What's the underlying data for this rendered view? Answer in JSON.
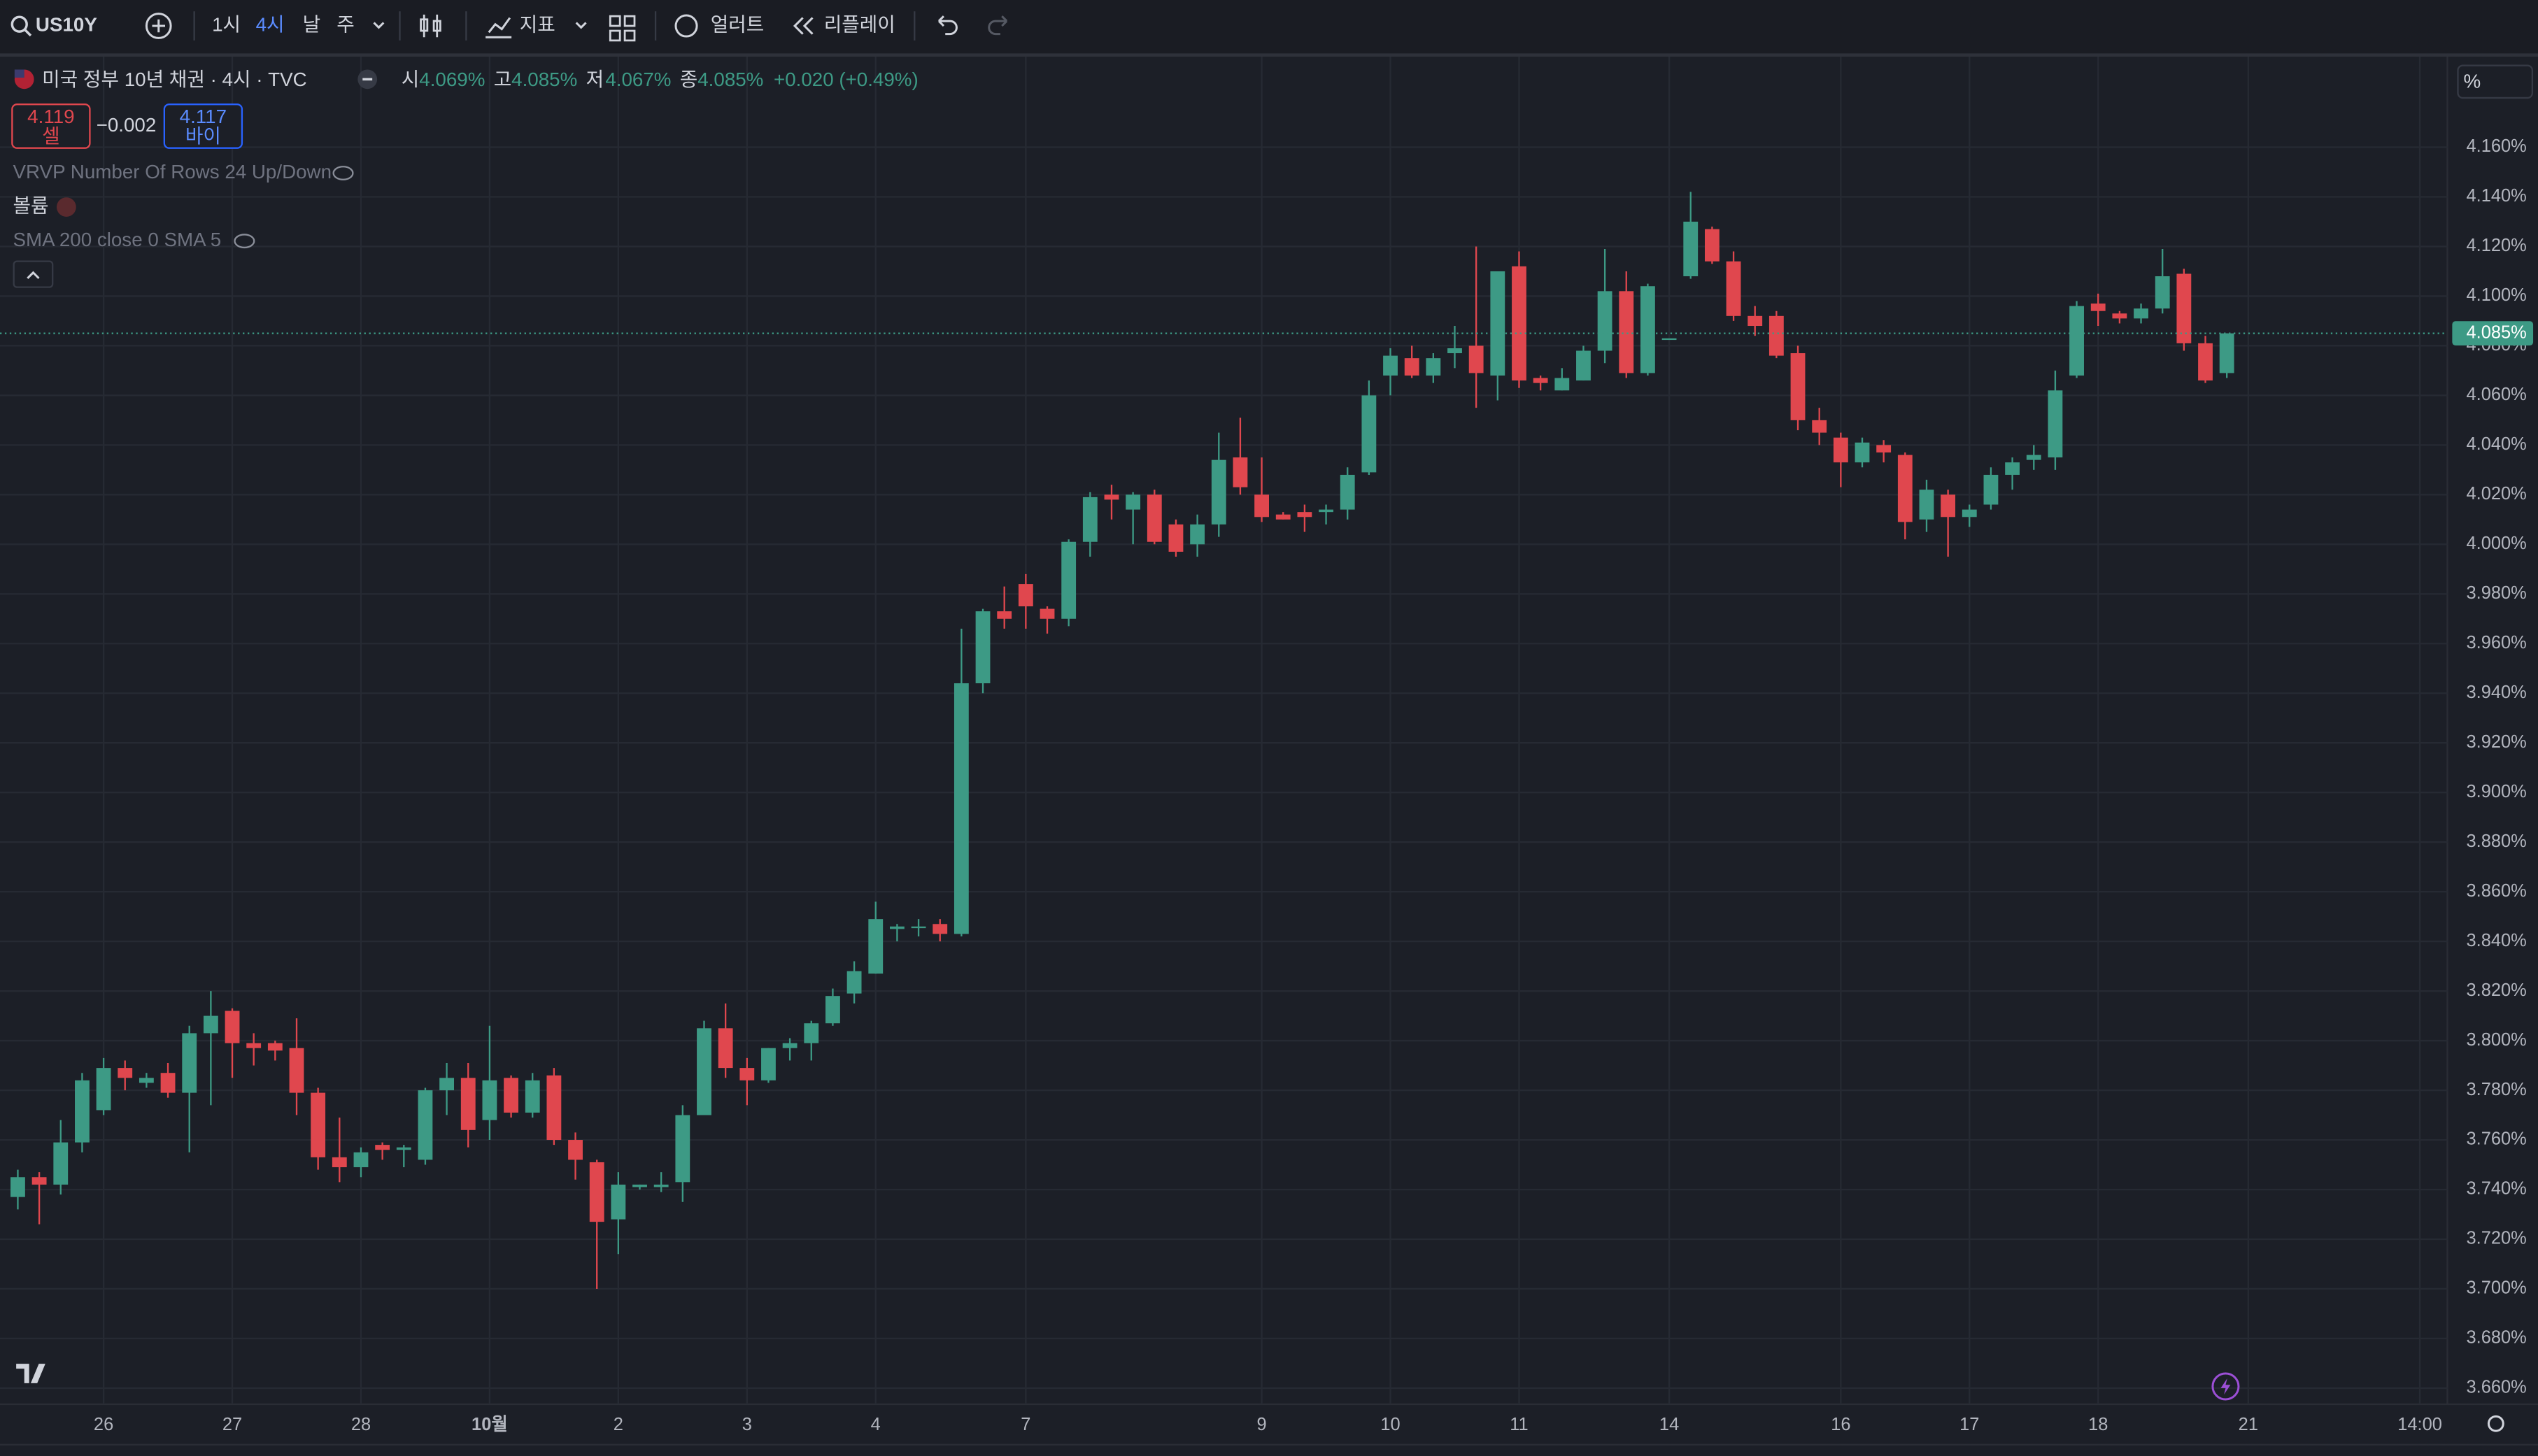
{
  "toolbar": {
    "symbol": "US10Y",
    "intervals": [
      "1시",
      "4시",
      "날",
      "주"
    ],
    "indicators": "지표",
    "alert": "얼러트",
    "replay": "리플레이"
  },
  "chart_data": {
    "type": "candlestick",
    "title": "미국 정부 10년 채권 · 4시 · TVC",
    "header": {
      "open_label": "시",
      "open": "4.069%",
      "high_label": "고",
      "high": "4.085%",
      "low_label": "저",
      "low": "4.067%",
      "close_label": "종",
      "close": "4.085%",
      "change": "+0.020 (+0.49%)"
    },
    "trade": {
      "sell_price": "4.119",
      "sell": "셀",
      "spread": "−0.002",
      "buy_price": "4.117",
      "buy": "바이"
    },
    "indicators": [
      "VRVP Number Of Rows 24 Up/Down",
      "볼륨",
      "SMA 200 close 0 SMA 5"
    ],
    "scale_unit": "%",
    "up_color": "#3d9a85",
    "down_color": "#e0474e",
    "grid": true,
    "categories": [
      null,
      null,
      null,
      null,
      "26",
      null,
      null,
      null,
      null,
      null,
      "27",
      null,
      null,
      null,
      null,
      null,
      "28",
      null,
      null,
      null,
      null,
      null,
      "10월",
      null,
      null,
      null,
      null,
      null,
      "2",
      null,
      null,
      null,
      null,
      null,
      "3",
      null,
      null,
      null,
      null,
      null,
      "4",
      null,
      null,
      null,
      null,
      null,
      null,
      "7",
      null,
      null,
      null,
      null,
      null,
      null,
      null,
      null,
      null,
      null,
      "9",
      null,
      null,
      null,
      null,
      null,
      "10",
      null,
      null,
      null,
      null,
      null,
      "11",
      null,
      null,
      null,
      null,
      null,
      null,
      "14",
      null,
      null,
      null,
      null,
      null,
      null,
      null,
      "16",
      null,
      null,
      null,
      null,
      null,
      "17",
      null,
      null,
      null,
      null,
      null,
      "18",
      null,
      null,
      null,
      null,
      null,
      null,
      "21",
      null,
      null,
      null,
      null,
      null,
      null,
      null,
      "14:00"
    ],
    "open": [
      3.737,
      3.745,
      3.742,
      3.759,
      3.772,
      3.789,
      3.783,
      3.787,
      3.779,
      3.803,
      3.812,
      3.799,
      3.799,
      3.797,
      3.779,
      3.753,
      3.749,
      3.758,
      3.756,
      3.752,
      3.78,
      3.785,
      3.768,
      3.785,
      3.771,
      3.786,
      3.76,
      3.751,
      3.728,
      3.741,
      3.741,
      3.743,
      3.77,
      3.805,
      3.789,
      3.784,
      3.797,
      3.799,
      3.807,
      3.819,
      3.827,
      3.845,
      3.846,
      3.847,
      3.843,
      3.944,
      3.973,
      3.984,
      3.974,
      3.97,
      4.001,
      4.02,
      4.014,
      4.02,
      4.008,
      4.0,
      4.008,
      4.035,
      4.02,
      4.012,
      4.013,
      4.013,
      4.014,
      4.029,
      4.068,
      4.075,
      4.068,
      4.077,
      4.08,
      4.068,
      4.112,
      4.067,
      4.062,
      4.066,
      4.078,
      4.102,
      4.069,
      4.083,
      4.108,
      4.127,
      4.114,
      4.092,
      4.092,
      4.077,
      4.05,
      4.043,
      4.033,
      4.04,
      4.036,
      4.01,
      4.02,
      4.011,
      4.016,
      4.028,
      4.034,
      4.035,
      4.068,
      4.097,
      4.093,
      4.091,
      4.095,
      4.109,
      4.081,
      4.069,
      null,
      null,
      null,
      null,
      null,
      null,
      null,
      null,
      null
    ],
    "high": [
      3.748,
      3.747,
      3.768,
      3.787,
      3.793,
      3.792,
      3.787,
      3.791,
      3.806,
      3.82,
      3.813,
      3.803,
      3.8,
      3.809,
      3.781,
      3.769,
      3.757,
      3.759,
      3.758,
      3.781,
      3.791,
      3.791,
      3.806,
      3.786,
      3.787,
      3.789,
      3.763,
      3.752,
      3.747,
      3.742,
      3.747,
      3.774,
      3.808,
      3.815,
      3.793,
      3.797,
      3.801,
      3.808,
      3.821,
      3.832,
      3.856,
      3.847,
      3.849,
      3.849,
      3.966,
      3.974,
      3.983,
      3.988,
      3.975,
      4.002,
      4.021,
      4.024,
      4.021,
      4.022,
      4.01,
      4.012,
      4.045,
      4.051,
      4.035,
      4.013,
      4.016,
      4.016,
      4.031,
      4.066,
      4.079,
      4.08,
      4.077,
      4.088,
      4.12,
      4.11,
      4.118,
      4.068,
      4.071,
      4.08,
      4.119,
      4.11,
      4.105,
      4.083,
      4.142,
      4.128,
      4.118,
      4.096,
      4.094,
      4.08,
      4.055,
      4.045,
      4.043,
      4.042,
      4.037,
      4.026,
      4.022,
      4.016,
      4.031,
      4.035,
      4.04,
      4.07,
      4.098,
      4.101,
      4.094,
      4.097,
      4.119,
      4.111,
      4.084,
      4.085,
      null,
      null,
      null,
      null,
      null,
      null,
      null,
      null,
      null
    ],
    "low": [
      3.732,
      3.726,
      3.738,
      3.755,
      3.77,
      3.78,
      3.781,
      3.777,
      3.755,
      3.774,
      3.785,
      3.79,
      3.792,
      3.77,
      3.748,
      3.743,
      3.745,
      3.752,
      3.749,
      3.75,
      3.77,
      3.757,
      3.76,
      3.769,
      3.769,
      3.758,
      3.744,
      3.7,
      3.714,
      3.74,
      3.739,
      3.735,
      3.77,
      3.785,
      3.774,
      3.783,
      3.792,
      3.792,
      3.806,
      3.815,
      3.827,
      3.84,
      3.842,
      3.84,
      3.842,
      3.94,
      3.966,
      3.966,
      3.964,
      3.967,
      3.995,
      4.01,
      4.0,
      4.0,
      3.995,
      3.995,
      4.003,
      4.02,
      4.009,
      4.01,
      4.005,
      4.008,
      4.01,
      4.028,
      4.06,
      4.067,
      4.065,
      4.071,
      4.055,
      4.058,
      4.063,
      4.062,
      4.062,
      4.066,
      4.073,
      4.067,
      4.068,
      4.083,
      4.107,
      4.113,
      4.09,
      4.084,
      4.075,
      4.046,
      4.04,
      4.023,
      4.031,
      4.033,
      4.002,
      4.005,
      3.995,
      4.007,
      4.014,
      4.022,
      4.03,
      4.03,
      4.067,
      4.088,
      4.089,
      4.089,
      4.093,
      4.078,
      4.065,
      4.067,
      null,
      null,
      null,
      null,
      null,
      null,
      null,
      null,
      null
    ],
    "close": [
      3.745,
      3.742,
      3.759,
      3.784,
      3.789,
      3.785,
      3.785,
      3.779,
      3.803,
      3.81,
      3.799,
      3.797,
      3.796,
      3.779,
      3.753,
      3.749,
      3.755,
      3.756,
      3.757,
      3.78,
      3.785,
      3.764,
      3.784,
      3.771,
      3.784,
      3.76,
      3.752,
      3.727,
      3.742,
      3.742,
      3.742,
      3.77,
      3.805,
      3.789,
      3.784,
      3.797,
      3.799,
      3.807,
      3.818,
      3.828,
      3.849,
      3.846,
      3.846,
      3.843,
      3.944,
      3.973,
      3.97,
      3.975,
      3.97,
      4.001,
      4.019,
      4.018,
      4.02,
      4.001,
      3.997,
      4.008,
      4.034,
      4.023,
      4.011,
      4.01,
      4.011,
      4.014,
      4.028,
      4.06,
      4.076,
      4.068,
      4.075,
      4.079,
      4.069,
      4.11,
      4.066,
      4.065,
      4.067,
      4.078,
      4.102,
      4.069,
      4.104,
      4.083,
      4.13,
      4.114,
      4.092,
      4.088,
      4.076,
      4.05,
      4.045,
      4.033,
      4.041,
      4.037,
      4.009,
      4.022,
      4.011,
      4.014,
      4.028,
      4.033,
      4.036,
      4.062,
      4.096,
      4.094,
      4.091,
      4.095,
      4.108,
      4.081,
      4.066,
      4.085,
      null,
      null,
      null,
      null,
      null,
      null,
      null,
      null,
      null
    ],
    "last_price": {
      "value": 4.085,
      "label": "4.085%"
    },
    "ylim": [
      3.6535,
      4.1965
    ],
    "yticks": [
      {
        "value": 3.66,
        "label": "3.660%"
      },
      {
        "value": 3.68,
        "label": "3.680%"
      },
      {
        "value": 3.7,
        "label": "3.700%"
      },
      {
        "value": 3.72,
        "label": "3.720%"
      },
      {
        "value": 3.74,
        "label": "3.740%"
      },
      {
        "value": 3.76,
        "label": "3.760%"
      },
      {
        "value": 3.78,
        "label": "3.780%"
      },
      {
        "value": 3.8,
        "label": "3.800%"
      },
      {
        "value": 3.82,
        "label": "3.820%"
      },
      {
        "value": 3.84,
        "label": "3.840%"
      },
      {
        "value": 3.86,
        "label": "3.860%"
      },
      {
        "value": 3.88,
        "label": "3.880%"
      },
      {
        "value": 3.9,
        "label": "3.900%"
      },
      {
        "value": 3.92,
        "label": "3.920%"
      },
      {
        "value": 3.94,
        "label": "3.940%"
      },
      {
        "value": 3.96,
        "label": "3.960%"
      },
      {
        "value": 3.98,
        "label": "3.980%"
      },
      {
        "value": 4.0,
        "label": "4.000%"
      },
      {
        "value": 4.02,
        "label": "4.020%"
      },
      {
        "value": 4.04,
        "label": "4.040%"
      },
      {
        "value": 4.06,
        "label": "4.060%"
      },
      {
        "value": 4.08,
        "label": "4.080%"
      },
      {
        "value": 4.1,
        "label": "4.100%"
      },
      {
        "value": 4.12,
        "label": "4.120%"
      },
      {
        "value": 4.14,
        "label": "4.140%"
      },
      {
        "value": 4.16,
        "label": "4.160%"
      }
    ]
  }
}
